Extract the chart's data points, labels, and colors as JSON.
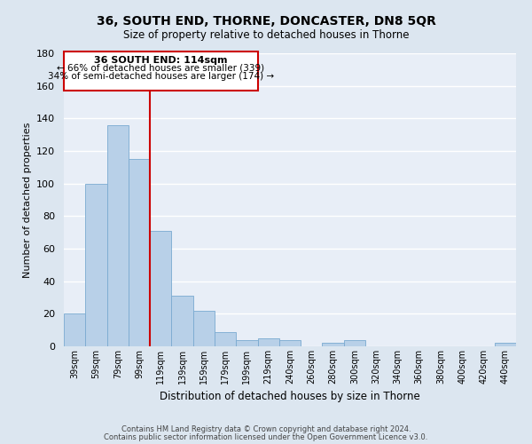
{
  "title": "36, SOUTH END, THORNE, DONCASTER, DN8 5QR",
  "subtitle": "Size of property relative to detached houses in Thorne",
  "xlabel": "Distribution of detached houses by size in Thorne",
  "ylabel": "Number of detached properties",
  "bar_color": "#b8d0e8",
  "bar_edge_color": "#7aaad0",
  "background_color": "#e8eef7",
  "fig_background_color": "#dce6f0",
  "grid_color": "#ffffff",
  "categories": [
    "39sqm",
    "59sqm",
    "79sqm",
    "99sqm",
    "119sqm",
    "139sqm",
    "159sqm",
    "179sqm",
    "199sqm",
    "219sqm",
    "240sqm",
    "260sqm",
    "280sqm",
    "300sqm",
    "320sqm",
    "340sqm",
    "360sqm",
    "380sqm",
    "400sqm",
    "420sqm",
    "440sqm"
  ],
  "values": [
    20,
    100,
    136,
    115,
    71,
    31,
    22,
    9,
    4,
    5,
    4,
    0,
    2,
    4,
    0,
    0,
    0,
    0,
    0,
    0,
    2
  ],
  "ylim": [
    0,
    180
  ],
  "yticks": [
    0,
    20,
    40,
    60,
    80,
    100,
    120,
    140,
    160,
    180
  ],
  "vline_x": 3.5,
  "vline_color": "#cc0000",
  "property_line_label": "36 SOUTH END: 114sqm",
  "annotation_line1": "← 66% of detached houses are smaller (339)",
  "annotation_line2": "34% of semi-detached houses are larger (174) →",
  "box_color": "#ffffff",
  "box_edge_color": "#cc0000",
  "footer_line1": "Contains HM Land Registry data © Crown copyright and database right 2024.",
  "footer_line2": "Contains public sector information licensed under the Open Government Licence v3.0."
}
